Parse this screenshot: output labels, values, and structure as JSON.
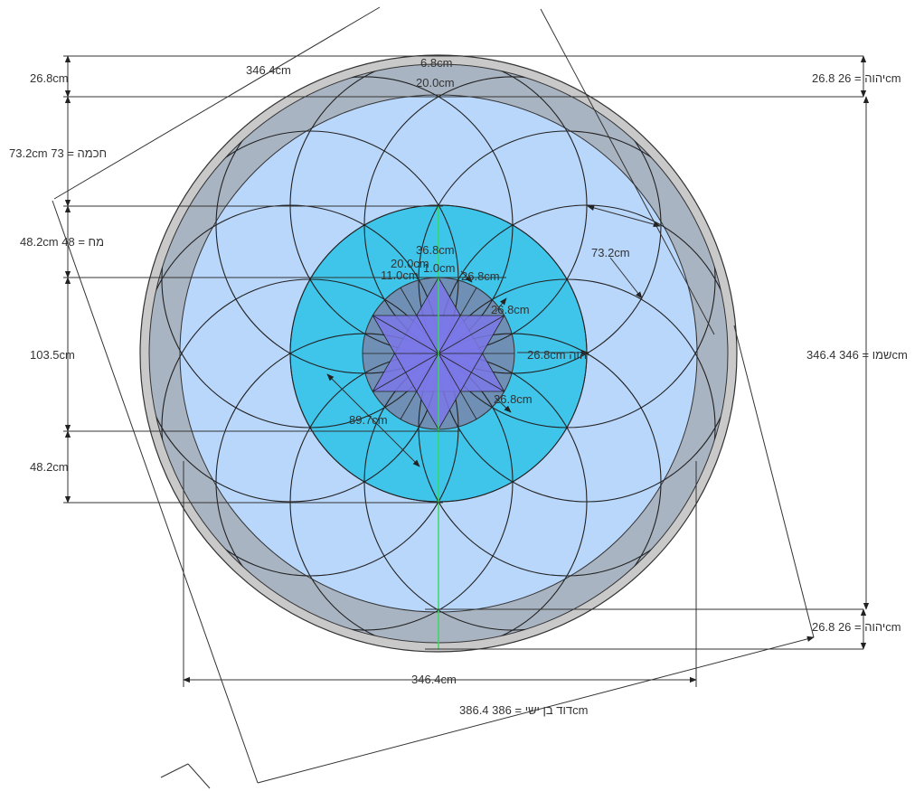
{
  "colors": {
    "outer_ring": "#c9c9c9",
    "ring2": "#a9b4c2",
    "body": "#b9d6fb",
    "cyan": "#3fc4ea",
    "inner": "#6f8fb4",
    "star": "#7b78e8",
    "axis": "#33dd55"
  },
  "labels": {
    "top_diag": "346.4cm",
    "top_small_a": "6.8cm",
    "top_small_b": "20.0cm",
    "left_top": "26.8cm",
    "left_chochma": "73.2cm 73 = חכמה",
    "left_moach": "48.2cm 48 = מח",
    "left_mid": "103.5cm",
    "left_bottom": "48.2cm",
    "right_top": "יהוה = 26 26.8cm",
    "right_shemo": "שמו = 346 346.4cm",
    "right_bottom": "יהוה = 26 26.8cm",
    "bottom_width": "346.4cm",
    "bottom_david": "דוד בן ישי = 386 386.4cm",
    "ring_diag": "73.2cm",
    "center_top": "36.8cm",
    "center_a": "20.0cm",
    "center_b": "1.0cm",
    "center_c": "11.0cm",
    "inner_1": "26.8cm",
    "inner_2": "26.8cm",
    "inner_3": "26.8cm",
    "inner_yhvh": "26.8cm יהוה",
    "inner_diag": "89.7cm"
  }
}
